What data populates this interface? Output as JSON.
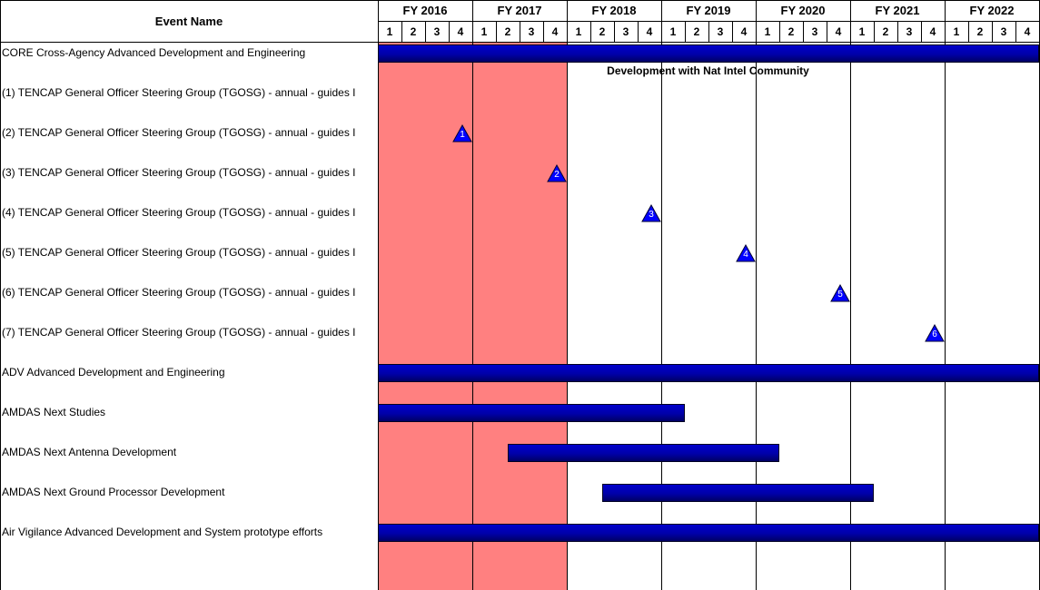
{
  "chart_data": {
    "type": "gantt",
    "column_header": "Event Name",
    "fiscal_years": [
      "FY 2016",
      "FY 2017",
      "FY 2018",
      "FY 2019",
      "FY 2020",
      "FY 2021",
      "FY 2022"
    ],
    "quarters": [
      "1",
      "2",
      "3",
      "4"
    ],
    "shaded_period": {
      "start": "FY 2016 Q1",
      "end": "FY 2017 Q4"
    },
    "rows": [
      {
        "label": "CORE Cross-Agency Advanced Development and Engineering",
        "kind": "bar",
        "start": "FY 2016 Q1",
        "end": "FY 2022 Q4",
        "annotation": "Development with Nat Intel Community"
      },
      {
        "label": "(1) TENCAP General Officer Steering Group (TGOSG) - annual - guides I",
        "kind": "milestone",
        "at": "FY 2016 Q4",
        "marker": "1"
      },
      {
        "label": "(2) TENCAP General Officer Steering Group (TGOSG) - annual - guides I",
        "kind": "milestone",
        "at": "FY 2017 Q4",
        "marker": "2"
      },
      {
        "label": "(3) TENCAP General Officer Steering Group (TGOSG) - annual - guides I",
        "kind": "milestone",
        "at": "FY 2018 Q4",
        "marker": "3"
      },
      {
        "label": "(4) TENCAP General Officer Steering Group (TGOSG) - annual - guides I",
        "kind": "milestone",
        "at": "FY 2019 Q4",
        "marker": "4"
      },
      {
        "label": "(5) TENCAP General Officer Steering Group (TGOSG) - annual - guides I",
        "kind": "milestone",
        "at": "FY 2020 Q4",
        "marker": "5"
      },
      {
        "label": "(6) TENCAP General Officer Steering Group (TGOSG) - annual - guides I",
        "kind": "milestone",
        "at": "FY 2021 Q4",
        "marker": "6"
      },
      {
        "label": "(7) TENCAP General Officer Steering Group (TGOSG) - annual - guides I",
        "kind": "milestone",
        "at": "FY 2022 Q4",
        "marker": "7"
      },
      {
        "label": "ADV Advanced Development and Engineering",
        "kind": "bar",
        "start": "FY 2016 Q1",
        "end": "FY 2022 Q4"
      },
      {
        "label": "AMDAS Next Studies",
        "kind": "bar",
        "start": "FY 2016 Q1",
        "end": "FY 2019 Q1"
      },
      {
        "label": "AMDAS Next Antenna Development",
        "kind": "bar",
        "start": "FY 2017 Q2",
        "end": "FY 2020 Q1"
      },
      {
        "label": "AMDAS Next Ground Processor Development",
        "kind": "bar",
        "start": "FY 2018 Q2",
        "end": "FY 2021 Q1"
      },
      {
        "label": "Air Vigilance Advanced Development and System prototype efforts",
        "kind": "bar",
        "start": "FY 2016 Q1",
        "end": "FY 2022 Q4"
      }
    ],
    "colors": {
      "bar": "#0000b0",
      "milestone": "#0000ff",
      "shade": "#ff8080",
      "grid": "#000000"
    }
  }
}
